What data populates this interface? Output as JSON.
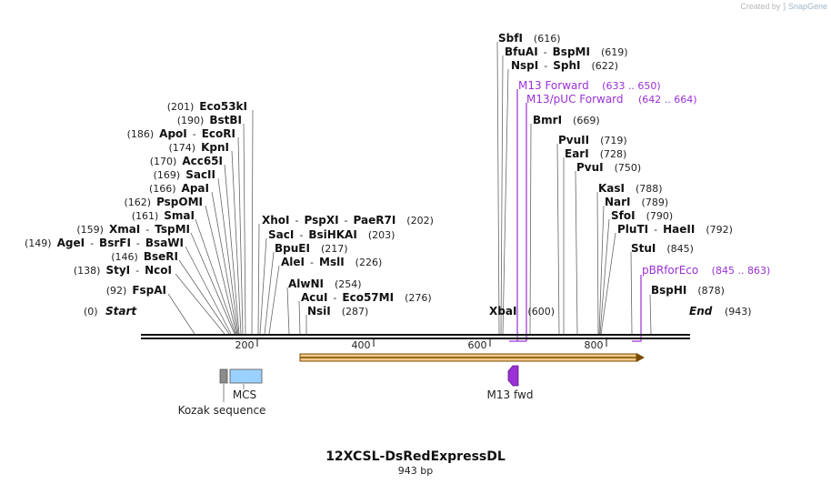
{
  "credit": {
    "prefix": "Created by",
    "brand": "SnapGene"
  },
  "title": "12XCSL-DsRedExpressDL",
  "subtitle": "943 bp",
  "ticks": [
    "200",
    "400",
    "600",
    "800"
  ],
  "ends": {
    "start": {
      "num": "(0)",
      "label": "Start"
    },
    "end": {
      "label": "End",
      "num": "(943)"
    }
  },
  "sites_left": [
    {
      "num": "(201)",
      "parts": [
        "Eco53kI"
      ]
    },
    {
      "num": "(190)",
      "parts": [
        "BstBI"
      ]
    },
    {
      "num": "(186)",
      "parts": [
        "ApoI",
        "EcoRI"
      ]
    },
    {
      "num": "(174)",
      "parts": [
        "KpnI"
      ]
    },
    {
      "num": "(170)",
      "parts": [
        "Acc65I"
      ]
    },
    {
      "num": "(169)",
      "parts": [
        "SacII"
      ]
    },
    {
      "num": "(166)",
      "parts": [
        "ApaI"
      ]
    },
    {
      "num": "(162)",
      "parts": [
        "PspOMI"
      ]
    },
    {
      "num": "(161)",
      "parts": [
        "SmaI"
      ]
    },
    {
      "num": "(159)",
      "parts": [
        "XmaI",
        "TspMI"
      ]
    },
    {
      "num": "(149)",
      "parts": [
        "AgeI",
        "BsrFI",
        "BsaWI"
      ]
    },
    {
      "num": "(146)",
      "parts": [
        "BseRI"
      ]
    },
    {
      "num": "(138)",
      "parts": [
        "StyI",
        "NcoI"
      ]
    },
    {
      "num": "(92)",
      "parts": [
        "FspAI"
      ]
    }
  ],
  "sites_mid": [
    {
      "parts": [
        "XhoI",
        "PspXI",
        "PaeR7I"
      ],
      "num": "(202)"
    },
    {
      "parts": [
        "SacI",
        "BsiHKAI"
      ],
      "num": "(203)"
    },
    {
      "parts": [
        "BpuEI"
      ],
      "num": "(217)"
    },
    {
      "parts": [
        "AleI",
        "MslI"
      ],
      "num": "(226)"
    },
    {
      "parts": [
        "AlwNI"
      ],
      "num": "(254)"
    },
    {
      "parts": [
        "AcuI",
        "Eco57MI"
      ],
      "num": "(276)"
    },
    {
      "parts": [
        "NsiI"
      ],
      "num": "(287)"
    }
  ],
  "sites_right": [
    {
      "parts": [
        "SbfI"
      ],
      "num": "(616)"
    },
    {
      "parts": [
        "BfuAI",
        "BspMI"
      ],
      "num": "(619)"
    },
    {
      "parts": [
        "NspI",
        "SphI"
      ],
      "num": "(622)"
    },
    {
      "parts": [
        "BmrI"
      ],
      "num": "(669)"
    },
    {
      "parts": [
        "PvuII"
      ],
      "num": "(719)"
    },
    {
      "parts": [
        "EarI"
      ],
      "num": "(728)"
    },
    {
      "parts": [
        "PvuI"
      ],
      "num": "(750)"
    },
    {
      "parts": [
        "KasI"
      ],
      "num": "(788)"
    },
    {
      "parts": [
        "NarI"
      ],
      "num": "(789)"
    },
    {
      "parts": [
        "SfoI"
      ],
      "num": "(790)"
    },
    {
      "parts": [
        "PluTI",
        "HaeII"
      ],
      "num": "(792)"
    },
    {
      "parts": [
        "StuI"
      ],
      "num": "(845)"
    },
    {
      "parts": [
        "BspHI"
      ],
      "num": "(878)"
    }
  ],
  "site_xbai": {
    "parts": [
      "XbaI"
    ],
    "num": "(600)"
  },
  "primers": [
    {
      "label": "M13 Forward",
      "range": "(633 .. 650)"
    },
    {
      "label": "M13/pUC Forward",
      "range": "(642 .. 664)"
    },
    {
      "label": "pBRforEco",
      "range": "(845 .. 863)"
    }
  ],
  "features": {
    "mcs": "MCS",
    "kozak": "Kozak sequence",
    "m13fwd": "M13 fwd"
  },
  "colors": {
    "primer": "#9b30d6",
    "orf_fill": "#f5c988",
    "orf_stroke": "#7a4a00",
    "mcs_fill": "#9bd1ff",
    "kozak_fill": "#8c8c8c",
    "backbone": "#111111"
  }
}
